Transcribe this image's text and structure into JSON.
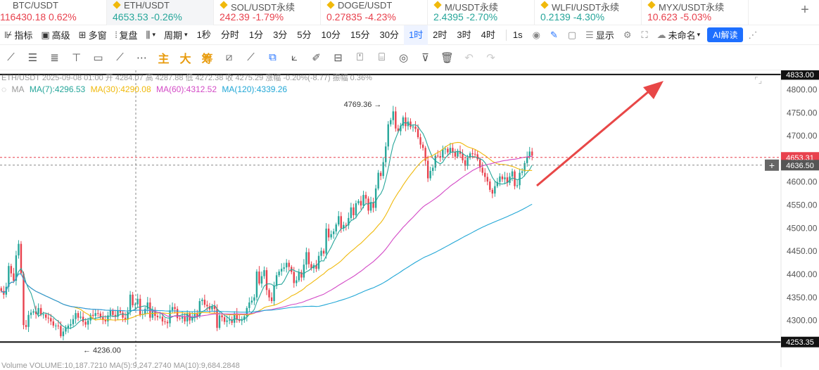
{
  "tabs": [
    {
      "symbol": "BTC/USDT",
      "price": "116430.18",
      "change": "0.62%",
      "dir": "dn"
    },
    {
      "symbol": "ETH/USDT",
      "price": "4653.53",
      "change": "-0.26%",
      "dir": "up"
    },
    {
      "symbol": "SOL/USDT永续",
      "price": "242.39",
      "change": "-1.79%",
      "dir": "dn"
    },
    {
      "symbol": "DOGE/USDT",
      "price": "0.27835",
      "change": "-4.23%",
      "dir": "dn"
    },
    {
      "symbol": "M/USDT永续",
      "price": "2.4395",
      "change": "-2.70%",
      "dir": "up"
    },
    {
      "symbol": "WLFI/USDT永续",
      "price": "0.2139",
      "change": "-4.30%",
      "dir": "up"
    },
    {
      "symbol": "MYX/USDT永续",
      "price": "10.623",
      "change": "-5.03%",
      "dir": "dn"
    }
  ],
  "toolbar": {
    "indicators": "指标",
    "advanced": "高级",
    "multi": "多窗",
    "replay": "复盘",
    "period": "周期",
    "timeframes": [
      "1秒",
      "分时",
      "1分",
      "3分",
      "5分",
      "10分",
      "15分",
      "30分",
      "1时",
      "2时",
      "3时",
      "4时"
    ],
    "active_tf": "1时",
    "right_1s": "1s",
    "display": "显示",
    "unnamed": "未命名",
    "ai": "AI解读"
  },
  "drawing_tools": [
    "trend-line",
    "horizontal-lines",
    "parallel-lines",
    "ray",
    "rectangle",
    "brush",
    "more",
    "主",
    "大",
    "筹",
    "magic",
    "measure",
    "cursor",
    "ruler",
    "pen",
    "pattern",
    "alert",
    "note",
    "fib",
    "filter",
    "delete",
    "undo",
    "redo"
  ],
  "legend": {
    "ohlc": "ETH/USDT 2025-09-08 01:00 开 4284.07 高 4287.88 低 4272.38 收 4275.29 涨幅 -0.20%(-8.77) 振幅 0.36%",
    "ma_label": "MA",
    "ma7": "MA(7):4296.53",
    "ma30": "MA(30):4290.08",
    "ma60": "MA(60):4312.52",
    "ma120": "MA(120):4339.26",
    "volume": "Volume VOLUME:10,187.7210  MA(5):9,247.2740  MA(10):9,684.2848"
  },
  "colors": {
    "up": "#26a69a",
    "down": "#e8414d",
    "ma7": "#26a69a",
    "ma30": "#f0b90b",
    "ma60": "#d34ac6",
    "ma120": "#22a7d6",
    "arrow": "#e84747"
  },
  "chart_data": {
    "type": "candlestick",
    "y_ticks": [
      4300,
      4350,
      4400,
      4450,
      4500,
      4550,
      4600,
      4650,
      4700,
      4750,
      4800
    ],
    "ylim": [
      4236,
      4840
    ],
    "high_marker": "4769.36",
    "low_marker": "4236.00",
    "levels": {
      "resistance": "4833.00",
      "support": "4253.35",
      "last": "4653.31",
      "cursor": "4636.50"
    },
    "closes": [
      4364,
      4356,
      4373,
      4418,
      4402,
      4386,
      4441,
      4466,
      4402,
      4290,
      4286,
      4312,
      4317,
      4320,
      4314,
      4327,
      4313,
      4313,
      4306,
      4305,
      4298,
      4289,
      4289,
      4288,
      4266,
      4276,
      4284,
      4289,
      4292,
      4303,
      4316,
      4306,
      4308,
      4297,
      4291,
      4300,
      4312,
      4310,
      4316,
      4315,
      4307,
      4301,
      4298,
      4311,
      4322,
      4312,
      4308,
      4322,
      4317,
      4306,
      4302,
      4319,
      4356,
      4333,
      4335,
      4347,
      4312,
      4314,
      4325,
      4339,
      4306,
      4323,
      4310,
      4307,
      4308,
      4298,
      4297,
      4294,
      4322,
      4329,
      4325,
      4305,
      4304,
      4308,
      4298,
      4315,
      4300,
      4307,
      4315,
      4309,
      4342,
      4345,
      4334,
      4331,
      4324,
      4331,
      4325,
      4284,
      4311,
      4307,
      4297,
      4300,
      4302,
      4295,
      4315,
      4302,
      4299,
      4301,
      4309,
      4327,
      4339,
      4343,
      4350,
      4406,
      4380,
      4396,
      4409,
      4366,
      4350,
      4342,
      4375,
      4398,
      4406,
      4412,
      4415,
      4425,
      4416,
      4405,
      4381,
      4387,
      4405,
      4393,
      4421,
      4448,
      4422,
      4413,
      4420,
      4412,
      4440,
      4451,
      4445,
      4499,
      4480,
      4487,
      4493,
      4508,
      4526,
      4499,
      4507,
      4506,
      4522,
      4545,
      4528,
      4554,
      4559,
      4549,
      4572,
      4564,
      4538,
      4556,
      4544,
      4586,
      4620,
      4613,
      4643,
      4677,
      4725,
      4734,
      4753,
      4716,
      4710,
      4722,
      4740,
      4721,
      4731,
      4719,
      4720,
      4715,
      4697,
      4681,
      4674,
      4646,
      4608,
      4624,
      4631,
      4657,
      4656,
      4653,
      4671,
      4672,
      4664,
      4674,
      4665,
      4655,
      4667,
      4661,
      4647,
      4635,
      4653,
      4662,
      4661,
      4660,
      4649,
      4631,
      4620,
      4611,
      4601,
      4583,
      4575,
      4591,
      4600,
      4612,
      4606,
      4610,
      4598,
      4612,
      4623,
      4591,
      4593,
      4620,
      4623,
      4641,
      4654,
      4666,
      4657
    ]
  }
}
